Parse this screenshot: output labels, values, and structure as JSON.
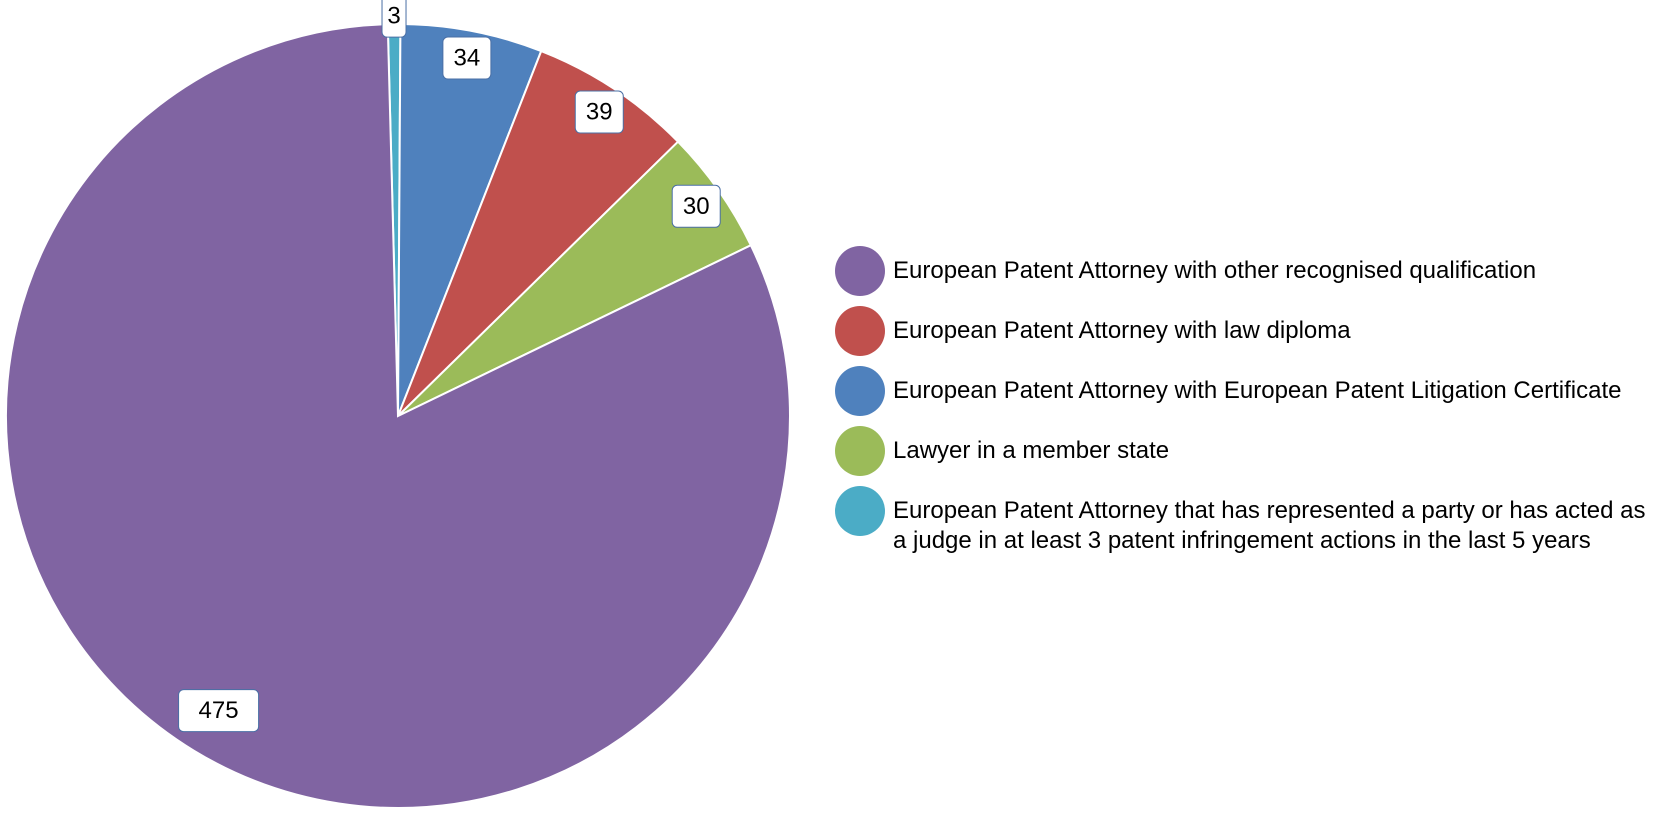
{
  "chart_data": {
    "type": "pie",
    "start_angle_deg": -1.5,
    "direction": "clockwise",
    "slices": [
      {
        "label": "European Patent Attorney that has represented a party or has acted as a judge in at least 3 patent infringement actions in the last 5 years",
        "value": 3,
        "color": "#4bacc6"
      },
      {
        "label": "European Patent Attorney with European Patent Litigation Certificate",
        "value": 34,
        "color": "#4f81bd"
      },
      {
        "label": "European Patent Attorney with law diploma",
        "value": 39,
        "color": "#c0504d"
      },
      {
        "label": "Lawyer in a member state",
        "value": 30,
        "color": "#9bbb59"
      },
      {
        "label": "European Patent Attorney with other recognised qualification",
        "value": 475,
        "color": "#8064a2"
      }
    ],
    "legend_order": [
      4,
      2,
      1,
      3,
      0
    ],
    "legend_position": "right"
  }
}
